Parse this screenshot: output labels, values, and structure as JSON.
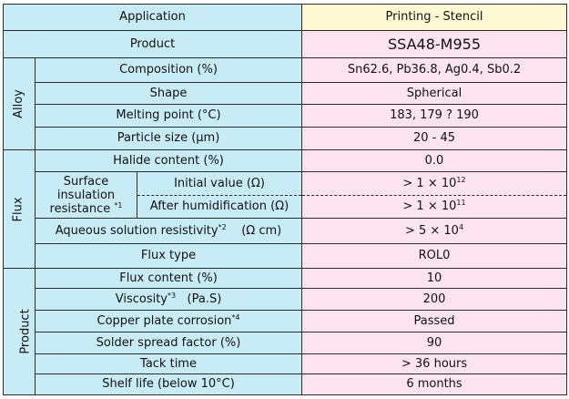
{
  "header": {
    "application": "Application",
    "printing": "Printing - Stencil"
  },
  "groups": {
    "alloy": "Alloy",
    "flux": "Flux",
    "product": "Product"
  },
  "rows": {
    "product": {
      "label": "Product",
      "value": "SSA48-M955"
    },
    "composition": {
      "label": "Composition (%)",
      "value": "Sn62.6, Pb36.8, Ag0.4, Sb0.2"
    },
    "shape": {
      "label": "Shape",
      "value": "Spherical"
    },
    "melting_point": {
      "label": "Melting point (°C)",
      "value": "183, 179 ? 190"
    },
    "particle_size": {
      "label": "Particle size (μm)",
      "value": "20 - 45"
    },
    "halide": {
      "label": "Halide content (%)",
      "value": "0.0"
    },
    "surface_insulation": {
      "label": "Surface insulation resistance",
      "note": "*1",
      "initial_label": "Initial value (Ω)",
      "initial_value": "> 1 × 10",
      "initial_exp": "12",
      "after_label": "After humidification (Ω)",
      "after_value": "> 1 × 10",
      "after_exp": "11"
    },
    "aqueous": {
      "label": "Aqueous solution resistivity",
      "note": "*2",
      "unit": "(Ω cm)",
      "value": "> 5 × 10",
      "exp": "4"
    },
    "flux_type": {
      "label": "Flux type",
      "value": "ROL0"
    },
    "flux_content": {
      "label": "Flux content (%)",
      "value": "10"
    },
    "viscosity": {
      "label": "Viscosity",
      "note": "*3",
      "unit": "(Pa.S)",
      "value": "200"
    },
    "copper": {
      "label": "Copper plate corrosion",
      "note": "*4",
      "value": "Passed"
    },
    "spread": {
      "label": "Solder spread factor (%)",
      "value": "90"
    },
    "tack": {
      "label": "Tack time",
      "value": "> 36 hours"
    },
    "shelf": {
      "label": "Shelf life (below 10°C)",
      "value": "6 months"
    }
  }
}
